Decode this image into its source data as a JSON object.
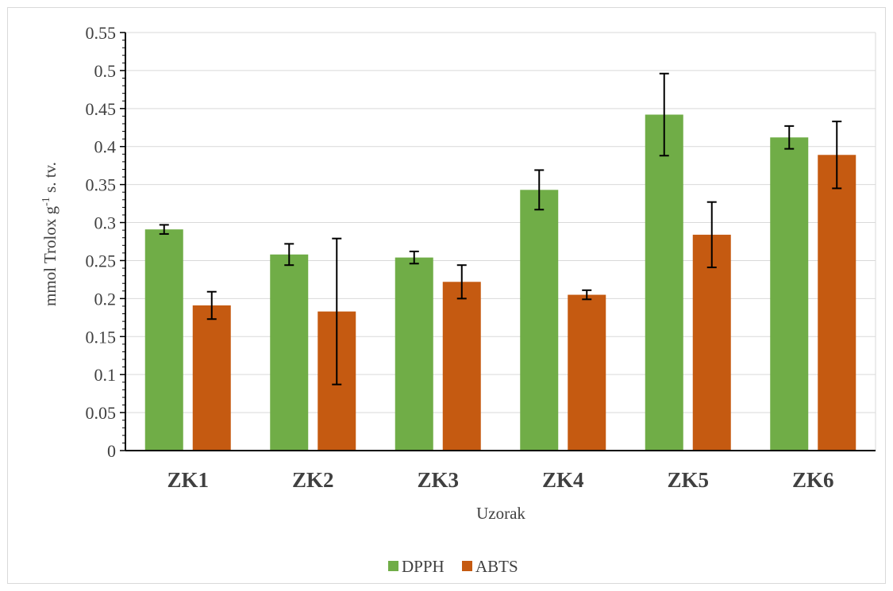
{
  "chart_data": {
    "type": "bar",
    "categories": [
      "ZK1",
      "ZK2",
      "ZK3",
      "ZK4",
      "ZK5",
      "ZK6"
    ],
    "series": [
      {
        "name": "DPPH",
        "color": "#70ad47",
        "values": [
          0.291,
          0.258,
          0.254,
          0.343,
          0.442,
          0.412
        ],
        "error": [
          0.006,
          0.014,
          0.008,
          0.026,
          0.054,
          0.015
        ]
      },
      {
        "name": "ABTS",
        "color": "#c55a11",
        "values": [
          0.191,
          0.183,
          0.222,
          0.205,
          0.284,
          0.389
        ],
        "error": [
          0.018,
          0.096,
          0.022,
          0.006,
          0.043,
          0.044
        ]
      }
    ],
    "ylim": [
      0,
      0.55
    ],
    "yticks": [
      "0",
      "0.05",
      "0.1",
      "0.15",
      "0.2",
      "0.25",
      "0.3",
      "0.35",
      "0.4",
      "0.45",
      "0.5",
      "0.55"
    ],
    "xlabel": "Uzorak",
    "ylabel": {
      "prefix": "mmol Trolox g",
      "superscript": "-1",
      "suffix": " s. tv."
    },
    "grid": true,
    "legend_position": "bottom"
  }
}
